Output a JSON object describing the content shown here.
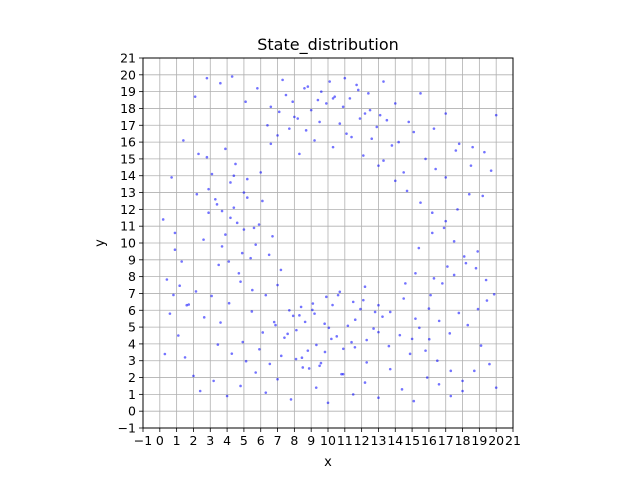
{
  "chart_data": {
    "type": "scatter",
    "title": "State_distribution",
    "xlabel": "x",
    "ylabel": "y",
    "xlim": [
      -1,
      21
    ],
    "ylim": [
      -1,
      21
    ],
    "xticks": [
      "−1",
      "0",
      "1",
      "2",
      "3",
      "4",
      "5",
      "6",
      "7",
      "8",
      "9",
      "10",
      "11",
      "12",
      "13",
      "14",
      "15",
      "16",
      "17",
      "18",
      "19",
      "20",
      "21"
    ],
    "yticks": [
      "−1",
      "0",
      "1",
      "2",
      "3",
      "4",
      "5",
      "6",
      "7",
      "8",
      "9",
      "10",
      "11",
      "12",
      "13",
      "14",
      "15",
      "16",
      "17",
      "18",
      "19",
      "20",
      "21"
    ],
    "grid": true,
    "marker_color": "#0000ff",
    "series": [
      {
        "values_description_only_for_generation": null,
        "x": [
          8.12,
          8.64,
          9.31,
          10.52,
          11.18,
          9.82,
          10.05,
          7.93,
          12.3,
          8.45,
          9.07,
          10.91,
          11.62,
          9.58,
          10.27,
          8.88,
          11.93,
          12.71,
          13.24,
          7.41,
          6.88,
          6.12,
          5.47,
          4.93,
          4.12,
          3.61,
          3.08,
          2.64,
          2.15,
          1.72,
          1.18,
          0.81,
          0.42,
          3.45,
          4.28,
          5.13,
          5.92,
          6.54,
          7.22,
          13.62,
          14.27,
          14.88,
          15.43,
          16.02,
          16.61,
          17.24,
          17.78,
          18.31,
          18.92,
          19.45,
          19.88,
          15.2,
          14.6,
          16.3,
          17.1,
          3.9,
          4.6,
          2.9,
          3.3,
          4.4,
          5.0,
          3.7,
          4.9,
          5.6,
          4.2,
          3.1,
          2.6,
          2.2,
          3.5,
          4.7,
          5.4,
          6.1,
          2.8,
          3.9,
          4.5,
          5.2,
          6.0,
          6.6,
          7.0,
          7.7,
          8.3,
          9.2,
          10.3,
          11.4,
          12.1,
          13.0,
          13.8,
          14.5,
          15.1,
          15.8,
          16.4,
          17.0,
          17.6,
          8.2,
          9.0,
          9.9,
          10.7,
          11.3,
          12.2,
          12.9,
          13.5,
          14.2,
          7.5,
          8.6,
          9.4,
          10.1,
          10.9,
          11.7,
          12.4,
          13.1,
          6.4,
          7.1,
          7.9,
          8.7,
          9.5,
          10.4,
          11.1,
          11.9,
          12.6,
          13.3,
          14.0,
          14.7,
          15.5,
          16.2,
          16.9,
          17.5,
          18.1,
          18.8,
          19.4,
          1.5,
          1.1,
          0.6,
          2.0,
          1.3,
          0.9,
          19.2,
          19.7,
          18.6,
          2.4,
          3.2,
          4.0,
          4.8,
          5.7,
          6.3,
          7.0,
          7.8,
          8.5,
          9.3,
          10.0,
          10.8,
          11.5,
          12.2,
          13.0,
          13.7,
          14.4,
          15.1,
          15.9,
          16.6,
          17.3,
          18.0,
          18.7,
          0.2,
          0.7,
          1.4,
          2.1,
          2.8,
          3.6,
          4.3,
          5.1,
          5.8,
          6.6,
          7.3,
          8.0,
          8.8,
          9.6,
          10.3,
          11.0,
          11.8,
          12.5,
          13.3,
          14.0,
          14.8,
          15.5,
          16.3,
          17.0,
          17.8,
          18.5,
          19.3,
          20.0,
          8.3,
          9.1,
          9.8,
          10.6,
          11.4,
          12.1,
          12.8,
          8.1,
          8.8,
          9.5,
          10.2,
          10.9,
          11.6,
          12.3,
          13.0,
          6.8,
          7.6,
          8.4,
          9.2,
          9.9,
          10.7,
          11.5,
          12.2,
          13.0,
          13.7,
          14.5,
          15.2,
          16.0,
          4.1,
          4.8,
          5.5,
          6.3,
          7.0,
          7.7,
          3.4,
          4.2,
          5.0,
          5.7,
          6.5,
          7.2,
          2.9,
          3.7,
          4.4,
          5.2,
          5.9,
          6.7,
          16.1,
          16.8,
          17.5,
          18.2,
          18.9,
          15.4,
          16.2,
          17.0,
          17.7,
          18.4,
          15.0,
          15.8,
          16.5,
          17.3,
          18.0,
          19.1,
          19.6,
          20.0,
          0.3,
          0.9,
          1.6,
          2.3
        ],
        "y": [
          4.82,
          5.31,
          3.94,
          4.45,
          5.08,
          3.52,
          4.96,
          5.67,
          4.23,
          3.18,
          6.02,
          3.71,
          5.44,
          2.86,
          6.31,
          2.54,
          6.07,
          4.91,
          5.62,
          4.37,
          5.12,
          4.68,
          5.93,
          4.11,
          6.42,
          5.27,
          6.85,
          5.58,
          7.12,
          6.34,
          7.46,
          6.91,
          7.83,
          3.96,
          3.42,
          2.97,
          3.68,
          2.81,
          3.29,
          3.87,
          4.52,
          3.41,
          4.96,
          4.28,
          5.37,
          4.63,
          5.84,
          5.12,
          6.07,
          6.58,
          6.95,
          8.2,
          7.6,
          7.9,
          8.6,
          10.5,
          11.2,
          11.8,
          12.6,
          12.1,
          13.0,
          9.8,
          9.4,
          10.9,
          13.6,
          14.1,
          10.2,
          12.9,
          8.7,
          8.2,
          9.1,
          12.5,
          15.1,
          15.6,
          14.7,
          13.8,
          14.2,
          15.9,
          16.4,
          16.8,
          15.3,
          16.1,
          15.7,
          16.3,
          15.2,
          14.6,
          15.8,
          14.2,
          16.6,
          15.0,
          14.4,
          13.9,
          15.5,
          17.4,
          17.9,
          18.3,
          17.1,
          18.6,
          17.7,
          16.9,
          17.3,
          16.0,
          18.8,
          19.2,
          18.5,
          19.6,
          18.1,
          19.4,
          18.9,
          17.6,
          17.0,
          17.8,
          18.4,
          16.7,
          17.2,
          18.7,
          16.5,
          17.4,
          16.2,
          14.9,
          13.7,
          13.1,
          12.4,
          11.8,
          10.9,
          10.1,
          9.2,
          8.5,
          7.8,
          3.2,
          4.5,
          5.8,
          2.1,
          8.9,
          10.6,
          12.8,
          14.3,
          15.7,
          1.2,
          1.8,
          0.9,
          1.5,
          2.3,
          1.1,
          1.9,
          0.7,
          2.6,
          1.4,
          0.5,
          2.2,
          1.0,
          1.7,
          0.8,
          2.5,
          1.3,
          0.6,
          2.0,
          1.6,
          0.9,
          1.2,
          2.4,
          11.4,
          13.9,
          16.1,
          18.7,
          19.8,
          19.5,
          19.9,
          18.4,
          19.2,
          18.1,
          19.7,
          17.5,
          19.3,
          19.0,
          18.6,
          19.8,
          19.1,
          17.9,
          19.6,
          18.3,
          17.2,
          18.9,
          16.8,
          17.7,
          15.9,
          14.6,
          15.4,
          17.6,
          5.7,
          6.4,
          5.2,
          6.9,
          4.1,
          6.6,
          5.9,
          3.1,
          3.6,
          2.7,
          4.3,
          2.2,
          3.8,
          2.9,
          4.7,
          5.3,
          4.6,
          6.2,
          5.8,
          6.8,
          7.1,
          6.5,
          7.4,
          6.3,
          5.9,
          6.7,
          5.5,
          6.1,
          8.9,
          7.7,
          7.2,
          6.9,
          7.5,
          6.0,
          12.3,
          11.5,
          10.8,
          9.9,
          9.3,
          8.4,
          13.2,
          11.9,
          14.0,
          12.7,
          11.1,
          10.4,
          6.9,
          7.6,
          8.1,
          8.8,
          9.5,
          9.7,
          10.6,
          11.3,
          12.0,
          12.9,
          4.3,
          3.6,
          3.0,
          2.4,
          1.8,
          3.9,
          2.8,
          1.4,
          3.4,
          9.6,
          6.3,
          15.3
        ]
      }
    ]
  }
}
